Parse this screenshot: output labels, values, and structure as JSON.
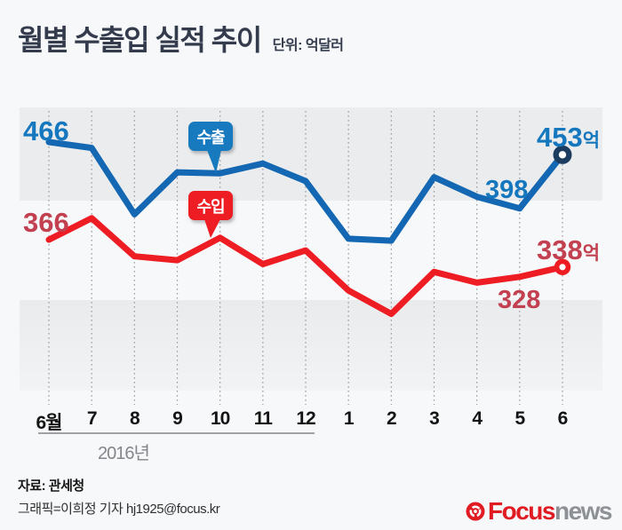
{
  "header": {
    "title": "월별 수출입 실적 추이",
    "unit": "단위: 억달러"
  },
  "chart_data": {
    "type": "line",
    "unit": "억달러",
    "categories": [
      "6월",
      "7",
      "8",
      "9",
      "10",
      "11",
      "12",
      "1",
      "2",
      "3",
      "4",
      "5",
      "6"
    ],
    "year_label": "2016년",
    "grid": "vertical-dotted",
    "legend_position": "callout-bubbles-on-lines",
    "series": [
      {
        "name": "수출",
        "line_color": "#1467b2",
        "bubble_color": "#177abf",
        "label_color": "#1577be",
        "endpoint_marker_color": "#1c3d5f",
        "values": [
          466,
          460,
          392,
          435,
          434,
          444,
          426,
          367,
          365,
          430,
          410,
          398,
          453
        ],
        "annotations": {
          "start": "466",
          "may": "398",
          "end_value": "453",
          "end_suffix": "억"
        }
      },
      {
        "name": "수입",
        "line_color": "#ee1c23",
        "bubble_color": "#ee1c23",
        "label_color": "#c2404f",
        "endpoint_marker_color": "#ee1c23",
        "values": [
          366,
          388,
          349,
          345,
          368,
          341,
          355,
          314,
          290,
          333,
          322,
          328,
          338
        ],
        "annotations": {
          "start": "366",
          "may": "328",
          "end_value": "338",
          "end_suffix": "억"
        }
      }
    ]
  },
  "footer": {
    "source": "자료: 관세청",
    "credit": "그래픽=이희정 기자 hj1925@focus.kr",
    "logo": {
      "focus": "Focus",
      "news": "news"
    }
  }
}
